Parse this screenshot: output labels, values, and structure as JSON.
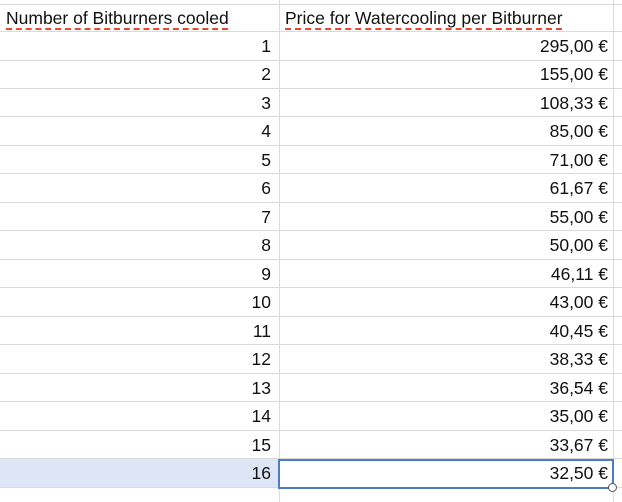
{
  "headers": {
    "col1": "Number of Bitburners cooled",
    "col2": "Price for Watercooling per Bitburner"
  },
  "rows": [
    {
      "n": "1",
      "price": "295,00 €"
    },
    {
      "n": "2",
      "price": "155,00 €"
    },
    {
      "n": "3",
      "price": "108,33 €"
    },
    {
      "n": "4",
      "price": "85,00 €"
    },
    {
      "n": "5",
      "price": "71,00 €"
    },
    {
      "n": "6",
      "price": "61,67 €"
    },
    {
      "n": "7",
      "price": "55,00 €"
    },
    {
      "n": "8",
      "price": "50,00 €"
    },
    {
      "n": "9",
      "price": "46,11 €"
    },
    {
      "n": "10",
      "price": "43,00 €"
    },
    {
      "n": "11",
      "price": "40,45 €"
    },
    {
      "n": "12",
      "price": "38,33 €"
    },
    {
      "n": "13",
      "price": "36,54 €"
    },
    {
      "n": "14",
      "price": "35,00 €"
    },
    {
      "n": "15",
      "price": "33,67 €"
    },
    {
      "n": "16",
      "price": "32,50 €"
    }
  ],
  "selection": {
    "row": 16,
    "color": "#4a7cc9",
    "row_highlight": "#dde5f6"
  }
}
